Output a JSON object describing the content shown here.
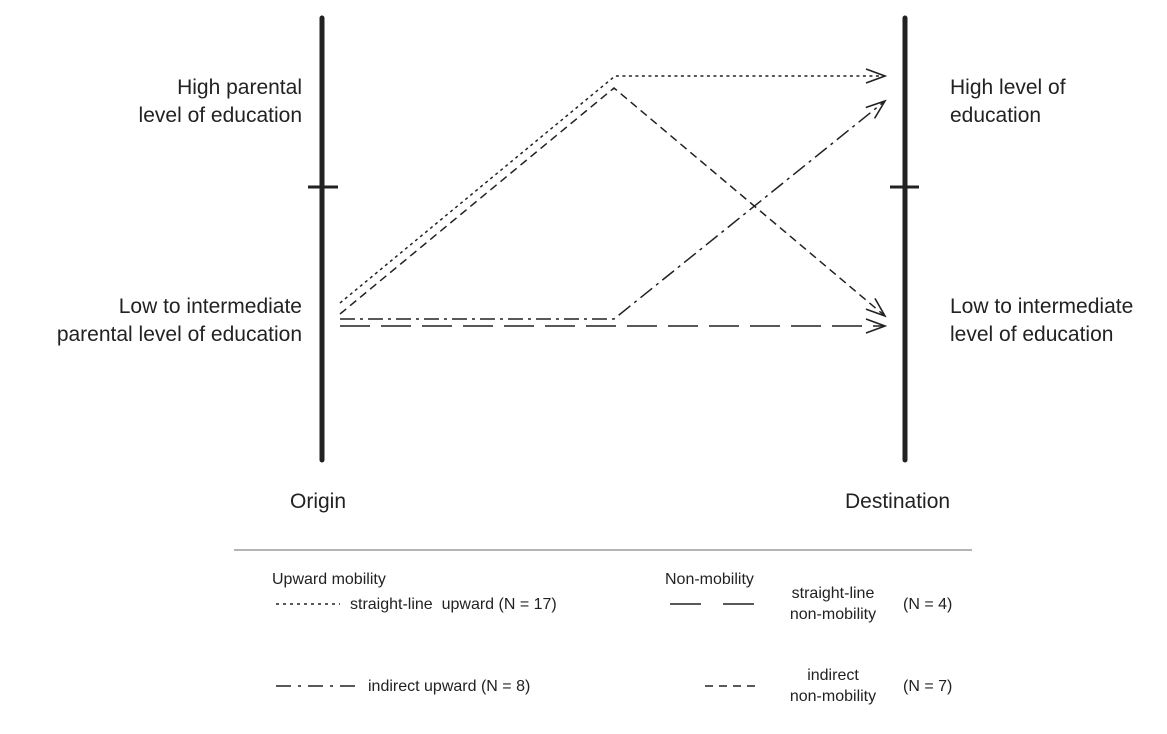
{
  "origin": {
    "label": "Origin",
    "high": [
      "High parental",
      "level of education"
    ],
    "low": [
      "Low to intermediate",
      "parental level of education"
    ]
  },
  "destination": {
    "label": "Destination",
    "high": [
      "High level of",
      "education"
    ],
    "low": [
      "Low to intermediate",
      "level of education"
    ]
  },
  "legend": {
    "upward_title": "Upward mobility",
    "non_title": "Non-mobility",
    "straight_upward": "straight-line  upward (N = 17)",
    "indirect_upward": "indirect upward (N = 8)",
    "straight_non": [
      "straight-line",
      "non-mobility"
    ],
    "straight_non_n": "(N = 4)",
    "indirect_non": [
      "indirect",
      "non-mobility"
    ],
    "indirect_non_n": "(N = 7)"
  },
  "line_color": "#222222"
}
